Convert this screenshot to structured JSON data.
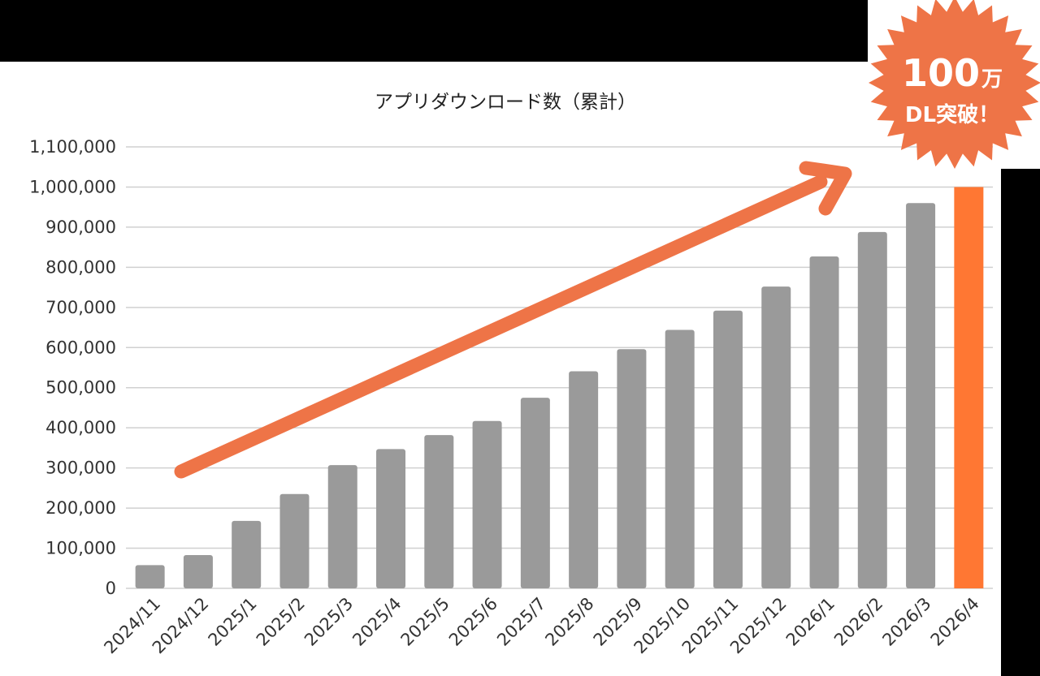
{
  "colors": {
    "bar": "#9a9a9a",
    "highlight": "#ff7733",
    "accent": "#ee7447",
    "grid": "#d0d0d0",
    "banner": "#000000"
  },
  "badge": {
    "number": "100",
    "unit": "万",
    "sub": "DL突破！"
  },
  "chart_data": {
    "type": "bar",
    "title": "アプリダウンロード数（累計）",
    "xlabel": "",
    "ylabel": "",
    "ylim": [
      0,
      1100000
    ],
    "yticks": [
      "0",
      "100,000",
      "200,000",
      "300,000",
      "400,000",
      "500,000",
      "600,000",
      "700,000",
      "800,000",
      "900,000",
      "1,000,000",
      "1,100,000"
    ],
    "categories": [
      "2024/11",
      "2024/12",
      "2025/1",
      "2025/2",
      "2025/3",
      "2025/4",
      "2025/5",
      "2025/6",
      "2025/7",
      "2025/8",
      "2025/9",
      "2025/10",
      "2025/11",
      "2025/12",
      "2026/1",
      "2026/2",
      "2026/3",
      "2026/4"
    ],
    "values": [
      58000,
      83000,
      168000,
      235000,
      307000,
      347000,
      382000,
      417000,
      475000,
      541000,
      596000,
      644000,
      692000,
      752000,
      827000,
      888000,
      960000,
      1000000
    ],
    "highlight_category": "2026/4",
    "grid": true,
    "legend": "none"
  }
}
